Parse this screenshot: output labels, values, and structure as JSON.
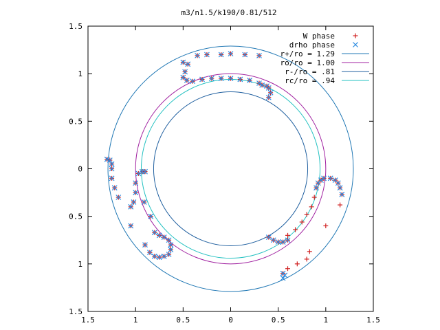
{
  "chart_data": {
    "type": "scatter",
    "title": "m3/n1.5/k190/0.81/512",
    "xlabel": "",
    "ylabel": "",
    "xlim": [
      -1.5,
      1.5
    ],
    "ylim": [
      -1.5,
      1.5
    ],
    "x_ticks": [
      -1.5,
      -1,
      -0.5,
      0,
      0.5,
      1,
      1.5
    ],
    "y_ticks": [
      -1.5,
      -1,
      -0.5,
      0,
      0.5,
      1,
      1.5
    ],
    "x_tick_labels": [
      "1.5",
      "1",
      "0.5",
      "0",
      "0.5",
      "1",
      "1.5"
    ],
    "y_tick_labels": [
      "1.5",
      "1",
      "0.5",
      "0",
      "0.5",
      "1",
      "1.5"
    ],
    "grid": false,
    "legend_position": "top-right",
    "circles": [
      {
        "name": "r+/ro = 1.29",
        "radius": 1.29,
        "color": "#1f77b4"
      },
      {
        "name": "ro/ro = 1.00",
        "radius": 1.0,
        "color": "#a020a0"
      },
      {
        "name": "r-/ro = .81",
        "radius": 0.81,
        "color": "#1f5f9f"
      },
      {
        "name": "rc/ro = .94",
        "radius": 0.94,
        "color": "#20c0c0"
      }
    ],
    "series": [
      {
        "name": "W phase",
        "marker": "plus",
        "color": "#d02020",
        "points": [
          [
            -0.5,
            1.12
          ],
          [
            -0.45,
            1.1
          ],
          [
            -0.48,
            1.02
          ],
          [
            -0.5,
            0.96
          ],
          [
            -0.46,
            0.93
          ],
          [
            -0.4,
            0.92
          ],
          [
            -0.35,
            1.19
          ],
          [
            -0.25,
            1.2
          ],
          [
            -0.1,
            1.2
          ],
          [
            0.0,
            1.21
          ],
          [
            0.15,
            1.2
          ],
          [
            0.3,
            1.19
          ],
          [
            -0.3,
            0.94
          ],
          [
            -0.2,
            0.95
          ],
          [
            -0.1,
            0.95
          ],
          [
            0.0,
            0.95
          ],
          [
            0.1,
            0.94
          ],
          [
            0.2,
            0.93
          ],
          [
            0.3,
            0.9
          ],
          [
            0.33,
            0.88
          ],
          [
            0.38,
            0.87
          ],
          [
            0.4,
            0.85
          ],
          [
            0.42,
            0.8
          ],
          [
            0.4,
            0.75
          ],
          [
            -1.3,
            0.1
          ],
          [
            -1.27,
            0.09
          ],
          [
            -1.25,
            0.05
          ],
          [
            -1.25,
            0.0
          ],
          [
            -1.25,
            -0.1
          ],
          [
            -1.22,
            -0.2
          ],
          [
            -1.18,
            -0.3
          ],
          [
            -1.05,
            -0.4
          ],
          [
            -1.02,
            -0.35
          ],
          [
            -1.0,
            -0.25
          ],
          [
            -1.0,
            -0.15
          ],
          [
            -0.97,
            -0.05
          ],
          [
            -0.93,
            -0.03
          ],
          [
            -0.9,
            -0.03
          ],
          [
            -0.8,
            -0.67
          ],
          [
            -0.75,
            -0.7
          ],
          [
            -0.7,
            -0.72
          ],
          [
            -0.65,
            -0.75
          ],
          [
            -0.63,
            -0.8
          ],
          [
            -0.63,
            -0.85
          ],
          [
            -0.65,
            -0.9
          ],
          [
            -0.7,
            -0.92
          ],
          [
            -0.75,
            -0.93
          ],
          [
            -0.8,
            -0.92
          ],
          [
            -0.85,
            -0.88
          ],
          [
            -1.05,
            -0.6
          ],
          [
            -0.9,
            -0.8
          ],
          [
            -0.84,
            -0.5
          ],
          [
            -0.91,
            -0.35
          ],
          [
            0.98,
            -0.1
          ],
          [
            1.05,
            -0.1
          ],
          [
            1.1,
            -0.12
          ],
          [
            1.13,
            -0.15
          ],
          [
            1.15,
            -0.2
          ],
          [
            1.17,
            -0.27
          ],
          [
            0.95,
            -0.12
          ],
          [
            0.92,
            -0.15
          ],
          [
            0.9,
            -0.2
          ],
          [
            0.88,
            -0.3
          ],
          [
            0.85,
            -0.4
          ],
          [
            0.8,
            -0.48
          ],
          [
            0.75,
            -0.56
          ],
          [
            0.68,
            -0.64
          ],
          [
            0.6,
            -0.7
          ],
          [
            0.4,
            -0.72
          ],
          [
            0.45,
            -0.75
          ],
          [
            0.5,
            -0.77
          ],
          [
            0.55,
            -0.77
          ],
          [
            0.6,
            -0.75
          ],
          [
            0.55,
            -1.1
          ],
          [
            0.6,
            -1.05
          ],
          [
            0.7,
            -1.0
          ],
          [
            0.8,
            -0.95
          ],
          [
            0.83,
            -0.87
          ],
          [
            1.0,
            -0.6
          ],
          [
            1.15,
            -0.38
          ]
        ]
      },
      {
        "name": "drho phase",
        "marker": "cross",
        "color": "#2a8ae0",
        "points": [
          [
            -0.5,
            1.12
          ],
          [
            -0.45,
            1.1
          ],
          [
            -0.48,
            1.02
          ],
          [
            -0.5,
            0.96
          ],
          [
            -0.46,
            0.93
          ],
          [
            -0.4,
            0.92
          ],
          [
            -0.35,
            1.19
          ],
          [
            -0.25,
            1.2
          ],
          [
            -0.1,
            1.2
          ],
          [
            0.0,
            1.21
          ],
          [
            0.15,
            1.2
          ],
          [
            0.3,
            1.19
          ],
          [
            -0.3,
            0.94
          ],
          [
            -0.2,
            0.95
          ],
          [
            -0.1,
            0.95
          ],
          [
            0.0,
            0.95
          ],
          [
            0.1,
            0.94
          ],
          [
            0.2,
            0.93
          ],
          [
            0.3,
            0.9
          ],
          [
            0.33,
            0.88
          ],
          [
            0.38,
            0.87
          ],
          [
            0.4,
            0.85
          ],
          [
            0.42,
            0.8
          ],
          [
            0.4,
            0.75
          ],
          [
            -1.3,
            0.1
          ],
          [
            -1.27,
            0.09
          ],
          [
            -1.25,
            0.05
          ],
          [
            -1.25,
            0.0
          ],
          [
            -1.25,
            -0.1
          ],
          [
            -1.22,
            -0.2
          ],
          [
            -1.18,
            -0.3
          ],
          [
            -1.05,
            -0.4
          ],
          [
            -1.02,
            -0.35
          ],
          [
            -1.0,
            -0.25
          ],
          [
            -1.0,
            -0.15
          ],
          [
            -0.97,
            -0.05
          ],
          [
            -0.93,
            -0.03
          ],
          [
            -0.9,
            -0.03
          ],
          [
            -0.8,
            -0.67
          ],
          [
            -0.75,
            -0.7
          ],
          [
            -0.7,
            -0.72
          ],
          [
            -0.65,
            -0.75
          ],
          [
            -0.63,
            -0.8
          ],
          [
            -0.63,
            -0.85
          ],
          [
            -0.65,
            -0.9
          ],
          [
            -0.7,
            -0.92
          ],
          [
            -0.75,
            -0.93
          ],
          [
            -0.8,
            -0.92
          ],
          [
            -0.85,
            -0.88
          ],
          [
            -1.05,
            -0.6
          ],
          [
            -0.9,
            -0.8
          ],
          [
            -0.84,
            -0.5
          ],
          [
            -0.91,
            -0.35
          ],
          [
            0.98,
            -0.1
          ],
          [
            1.05,
            -0.1
          ],
          [
            1.1,
            -0.12
          ],
          [
            1.13,
            -0.15
          ],
          [
            1.15,
            -0.2
          ],
          [
            1.17,
            -0.27
          ],
          [
            0.95,
            -0.12
          ],
          [
            0.92,
            -0.15
          ],
          [
            0.9,
            -0.2
          ],
          [
            0.4,
            -0.72
          ],
          [
            0.45,
            -0.75
          ],
          [
            0.5,
            -0.77
          ],
          [
            0.55,
            -0.77
          ],
          [
            0.6,
            -0.75
          ],
          [
            0.55,
            -1.1
          ],
          [
            0.55,
            -1.15
          ],
          [
            0.57,
            -1.12
          ]
        ]
      }
    ]
  }
}
